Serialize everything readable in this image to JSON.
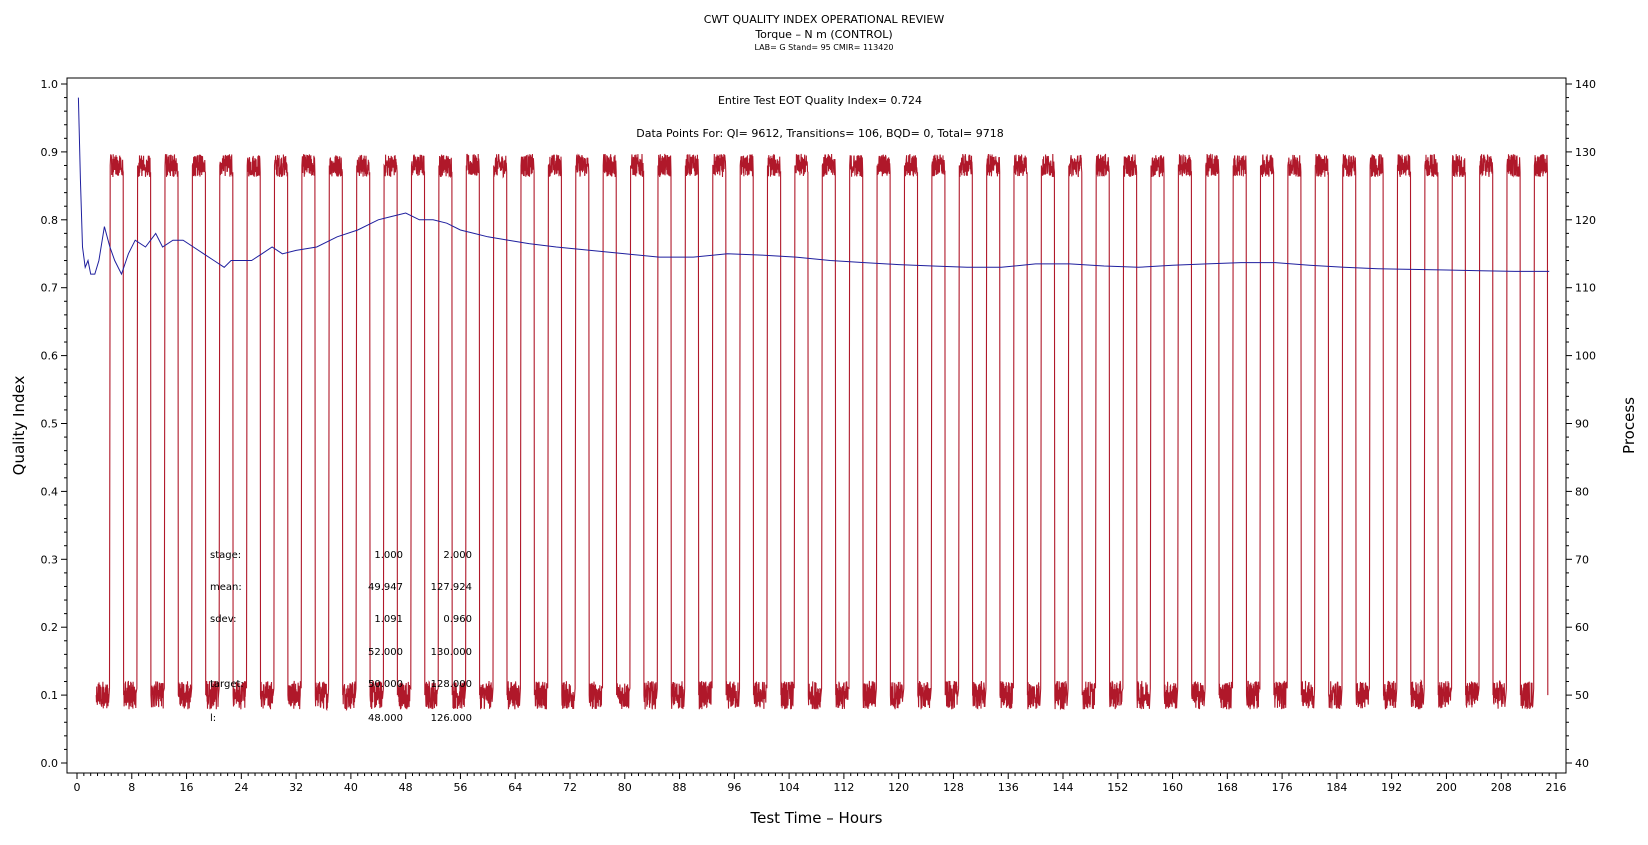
{
  "header": {
    "title": "CWT QUALITY INDEX OPERATIONAL REVIEW",
    "subtitle": "Torque – N m (CONTROL)",
    "subsubtitle": "LAB= G Stand= 95 CMIR= 113420"
  },
  "annotations": {
    "eot": "Entire Test EOT Quality Index=  0.724",
    "datapoints": "Data Points For: QI=  9612, Transitions=   106, BQD=     0, Total=  9718"
  },
  "stats": [
    {
      "label": "stage:",
      "v1": "1.000",
      "v2": "2.000"
    },
    {
      "label": "mean:",
      "v1": "49.947",
      "v2": "127.924"
    },
    {
      "label": "sdev:",
      "v1": "1.091",
      "v2": "0.960"
    },
    {
      "label": "",
      "v1": "52.000",
      "v2": "130.000"
    },
    {
      "label": "target:",
      "v1": "50.000",
      "v2": "128.000"
    },
    {
      "label": "l:",
      "v1": "48.000",
      "v2": "126.000"
    }
  ],
  "colors": {
    "quality_index": "#1f1f9e",
    "process": "#b0182a",
    "axis": "#000000"
  },
  "chart_data": {
    "type": "line",
    "title": "CWT QUALITY INDEX OPERATIONAL REVIEW",
    "xlabel": "Test Time – Hours",
    "ylabel": "Quality Index",
    "y2label": "Process",
    "xlim": [
      0,
      216
    ],
    "ylim": [
      0,
      1.0
    ],
    "y2lim": [
      40,
      140
    ],
    "x_ticks": [
      0,
      8,
      16,
      24,
      32,
      40,
      48,
      56,
      64,
      72,
      80,
      88,
      96,
      104,
      112,
      120,
      128,
      136,
      144,
      152,
      160,
      168,
      176,
      184,
      192,
      200,
      208,
      216
    ],
    "y_ticks": [
      "0.0",
      "0.1",
      "0.2",
      "0.3",
      "0.4",
      "0.5",
      "0.6",
      "0.7",
      "0.8",
      "0.9",
      "1.0"
    ],
    "y2_ticks": [
      "40",
      "50",
      "60",
      "70",
      "80",
      "90",
      "100",
      "110",
      "120",
      "130",
      "140"
    ],
    "series": [
      {
        "axis": "left",
        "color": "#1f1f9e",
        "x": [
          0.2,
          0.5,
          0.8,
          1.2,
          1.6,
          2,
          2.6,
          3.2,
          4,
          4.8,
          5.5,
          6.5,
          7.5,
          8.5,
          10,
          11.5,
          12.5,
          14,
          15.5,
          17,
          18.5,
          20,
          21.5,
          22.5,
          24,
          25.5,
          27,
          28.5,
          30,
          32,
          35,
          38,
          41,
          44,
          46,
          48,
          50,
          52,
          54,
          56,
          58,
          60,
          63,
          66,
          70,
          75,
          80,
          85,
          90,
          95,
          100,
          105,
          110,
          115,
          120,
          125,
          130,
          135,
          140,
          145,
          150,
          155,
          160,
          165,
          170,
          175,
          180,
          185,
          190,
          195,
          200,
          205,
          210,
          215
        ],
        "y": [
          0.98,
          0.86,
          0.76,
          0.73,
          0.74,
          0.72,
          0.72,
          0.74,
          0.79,
          0.76,
          0.74,
          0.72,
          0.75,
          0.77,
          0.76,
          0.78,
          0.76,
          0.77,
          0.77,
          0.76,
          0.75,
          0.74,
          0.73,
          0.74,
          0.74,
          0.74,
          0.75,
          0.76,
          0.75,
          0.755,
          0.76,
          0.775,
          0.785,
          0.8,
          0.805,
          0.81,
          0.8,
          0.8,
          0.795,
          0.785,
          0.78,
          0.775,
          0.77,
          0.765,
          0.76,
          0.755,
          0.75,
          0.745,
          0.745,
          0.75,
          0.748,
          0.745,
          0.74,
          0.737,
          0.734,
          0.732,
          0.73,
          0.73,
          0.735,
          0.735,
          0.732,
          0.73,
          0.733,
          0.735,
          0.737,
          0.737,
          0.733,
          0.73,
          0.728,
          0.727,
          0.726,
          0.725,
          0.724,
          0.724
        ]
      },
      {
        "axis": "right",
        "color": "#b0182a",
        "pattern": "square-wave",
        "low": 50,
        "high": 128,
        "cycles": 53,
        "start": 2.8,
        "period": 4.0,
        "x": [
          2.8,
          4.8,
          6.8,
          8.8,
          10.8,
          12.8,
          14.8,
          16.8,
          18.8,
          20.8,
          22.8,
          24.8,
          26.8,
          28.8,
          30.8,
          32.8,
          34.8,
          36.8,
          38.8,
          40.8,
          42.8,
          44.8,
          46.8,
          48.8,
          50.8,
          52.8,
          54.8,
          56.8,
          58.8,
          60.8,
          62.8,
          64.8,
          66.8,
          68.8,
          70.8,
          72.8,
          74.8,
          76.8,
          78.8,
          80.8,
          82.8,
          84.8,
          86.8,
          88.8,
          90.8,
          92.8,
          94.8,
          96.8,
          98.8,
          100.8,
          102.8,
          104.8,
          106.8,
          108.8,
          110.8,
          112.8,
          114.8,
          116.8,
          118.8,
          120.8,
          122.8,
          124.8,
          126.8,
          128.8,
          130.8,
          132.8,
          134.8,
          136.8,
          138.8,
          140.8,
          142.8,
          144.8,
          146.8,
          148.8,
          150.8,
          152.8,
          154.8,
          156.8,
          158.8,
          160.8,
          162.8,
          164.8,
          166.8,
          168.8,
          170.8,
          172.8,
          174.8,
          176.8,
          178.8,
          180.8,
          182.8,
          184.8,
          186.8,
          188.8,
          190.8,
          192.8,
          194.8,
          196.8,
          198.8,
          200.8,
          202.8,
          204.8,
          206.8,
          208.8,
          210.8,
          212.8,
          214.8
        ],
        "y": [
          50,
          128,
          50,
          128,
          50,
          128,
          50,
          128,
          50,
          128,
          50,
          128,
          50,
          128,
          50,
          128,
          50,
          128,
          50,
          128,
          50,
          128,
          50,
          128,
          50,
          128,
          50,
          128,
          50,
          128,
          50,
          128,
          50,
          128,
          50,
          128,
          50,
          128,
          50,
          128,
          50,
          128,
          50,
          128,
          50,
          128,
          50,
          128,
          50,
          128,
          50,
          128,
          50,
          128,
          50,
          128,
          50,
          128,
          50,
          128,
          50,
          128,
          50,
          128,
          50,
          128,
          50,
          128,
          50,
          128,
          50,
          128,
          50,
          128,
          50,
          128,
          50,
          128,
          50,
          128,
          50,
          128,
          50,
          128,
          50,
          128,
          50,
          128,
          50,
          128,
          50,
          128,
          50,
          128,
          50,
          128,
          50,
          128,
          50,
          128,
          50,
          128,
          50,
          128,
          50,
          128,
          50
        ]
      }
    ],
    "grid": false,
    "legend": "none"
  }
}
